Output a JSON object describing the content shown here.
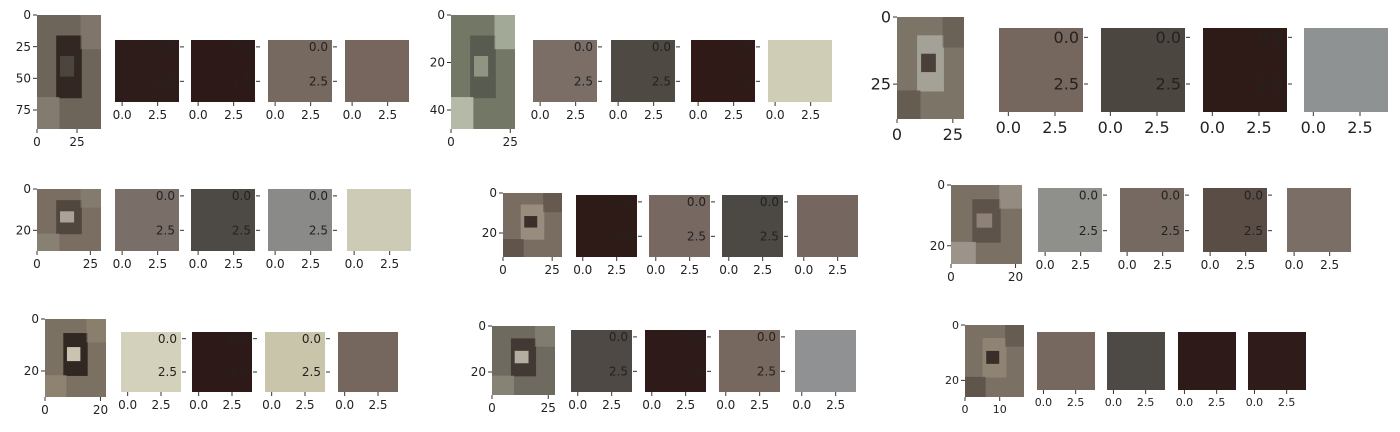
{
  "chart_data": [
    {
      "type": "image_with_color_swatches",
      "crop": {
        "xticks": [
          "0",
          "25"
        ],
        "yticks": [
          "0",
          "25",
          "50",
          "75"
        ],
        "colors": [
          "#6e655a",
          "#514b42",
          "#2b201c",
          "#8a8175"
        ]
      },
      "swatches": [
        {
          "color": "#2e1c1a",
          "xticks": [
            "0.0",
            "2.5"
          ],
          "yticks": [
            "0.0",
            "2.5"
          ]
        },
        {
          "color": "#2d1917",
          "xticks": [
            "0.0",
            "2.5"
          ],
          "yticks": [
            "0.0",
            "2.5"
          ]
        },
        {
          "color": "#756960",
          "xticks": [
            "0.0",
            "2.5"
          ],
          "yticks": [
            "0.0",
            "2.5"
          ]
        },
        {
          "color": "#76665d",
          "xticks": [
            "0.0",
            "2.5"
          ],
          "yticks": []
        }
      ]
    },
    {
      "type": "image_with_color_swatches",
      "crop": {
        "xticks": [
          "0",
          "25"
        ],
        "yticks": [
          "0",
          "20",
          "40"
        ],
        "colors": [
          "#727865",
          "#9aa08c",
          "#55584c",
          "#c5c9b9"
        ]
      },
      "swatches": [
        {
          "color": "#7a6e66",
          "xticks": [
            "0.0",
            "2.5"
          ],
          "yticks": [
            "0.0",
            "2.5"
          ]
        },
        {
          "color": "#4e4a43",
          "xticks": [
            "0.0",
            "2.5"
          ],
          "yticks": [
            "0.0",
            "2.5"
          ]
        },
        {
          "color": "#2f1a18",
          "xticks": [
            "0.0",
            "2.5"
          ],
          "yticks": [
            "0.0",
            "2.5"
          ]
        },
        {
          "color": "#cfcdb6",
          "xticks": [
            "0.0",
            "2.5"
          ],
          "yticks": []
        }
      ]
    },
    {
      "type": "image_with_color_swatches",
      "crop": {
        "xticks": [
          "0",
          "25"
        ],
        "yticks": [
          "0",
          "25"
        ],
        "colors": [
          "#7d7468",
          "#3a2e2a",
          "#a9a79c",
          "#5f564c"
        ]
      },
      "swatches": [
        {
          "color": "#75665e",
          "xticks": [
            "0.0",
            "2.5"
          ],
          "yticks": [
            "0.0",
            "2.5"
          ]
        },
        {
          "color": "#4c4641",
          "xticks": [
            "0.0",
            "2.5"
          ],
          "yticks": [
            "0.0",
            "2.5"
          ]
        },
        {
          "color": "#2e1b18",
          "xticks": [
            "0.0",
            "2.5"
          ],
          "yticks": [
            "0.0",
            "2.5"
          ]
        },
        {
          "color": "#8e9292",
          "xticks": [
            "0.0",
            "2.5"
          ],
          "yticks": []
        }
      ]
    },
    {
      "type": "image_with_color_swatches",
      "crop": {
        "xticks": [
          "0",
          "25"
        ],
        "yticks": [
          "0",
          "20"
        ],
        "colors": [
          "#7a6e62",
          "#b8b4a8",
          "#4b423c",
          "#8b8478"
        ]
      },
      "swatches": [
        {
          "color": "#7a6e68",
          "xticks": [
            "0.0",
            "2.5"
          ],
          "yticks": [
            "0.0",
            "2.5"
          ]
        },
        {
          "color": "#4d4944",
          "xticks": [
            "0.0",
            "2.5"
          ],
          "yticks": [
            "0.0",
            "2.5"
          ]
        },
        {
          "color": "#8a8a88",
          "xticks": [
            "0.0",
            "2.5"
          ],
          "yticks": [
            "0.0",
            "2.5"
          ]
        },
        {
          "color": "#cdcbb6",
          "xticks": [
            "0.0",
            "2.5"
          ],
          "yticks": []
        }
      ]
    },
    {
      "type": "image_with_color_swatches",
      "crop": {
        "xticks": [
          "0",
          "25"
        ],
        "yticks": [
          "0",
          "20"
        ],
        "colors": [
          "#786d60",
          "#2b1f1c",
          "#9a8f82",
          "#5a4e46"
        ]
      },
      "swatches": [
        {
          "color": "#2e1a17",
          "xticks": [
            "0.0",
            "2.5"
          ],
          "yticks": [
            "0.0",
            "2.5"
          ]
        },
        {
          "color": "#776862",
          "xticks": [
            "0.0",
            "2.5"
          ],
          "yticks": [
            "0.0",
            "2.5"
          ]
        },
        {
          "color": "#4c4843",
          "xticks": [
            "0.0",
            "2.5"
          ],
          "yticks": [
            "0.0",
            "2.5"
          ]
        },
        {
          "color": "#75675f",
          "xticks": [
            "0.0",
            "2.5"
          ],
          "yticks": []
        }
      ]
    },
    {
      "type": "image_with_color_swatches",
      "crop": {
        "xticks": [
          "0",
          "20"
        ],
        "yticks": [
          "0",
          "20"
        ],
        "colors": [
          "#7a7064",
          "#968b80",
          "#5b5047",
          "#a59e94"
        ]
      },
      "swatches": [
        {
          "color": "#8f8f8c",
          "xticks": [
            "0.0",
            "2.5"
          ],
          "yticks": [
            "0.0",
            "2.5"
          ]
        },
        {
          "color": "#766961",
          "xticks": [
            "0.0",
            "2.5"
          ],
          "yticks": [
            "0.0",
            "2.5"
          ]
        },
        {
          "color": "#5a4d46",
          "xticks": [
            "0.0",
            "2.5"
          ],
          "yticks": [
            "0.0",
            "2.5"
          ]
        },
        {
          "color": "#7b6e66",
          "xticks": [
            "0.0",
            "2.5"
          ],
          "yticks": []
        }
      ]
    },
    {
      "type": "image_with_color_swatches",
      "crop": {
        "xticks": [
          "0",
          "20"
        ],
        "yticks": [
          "0",
          "20"
        ],
        "colors": [
          "#7b7163",
          "#e3dfca",
          "#2a201c",
          "#938873"
        ]
      },
      "swatches": [
        {
          "color": "#d3d0bc",
          "xticks": [
            "0.0",
            "2.5"
          ],
          "yticks": [
            "0.0",
            "2.5"
          ]
        },
        {
          "color": "#2d1a18",
          "xticks": [
            "0.0",
            "2.5"
          ],
          "yticks": [
            "0.0",
            "2.5"
          ]
        },
        {
          "color": "#c9c5aa",
          "xticks": [
            "0.0",
            "2.5"
          ],
          "yticks": [
            "0.0",
            "2.5"
          ]
        },
        {
          "color": "#75665e",
          "xticks": [
            "0.0",
            "2.5"
          ],
          "yticks": []
        }
      ]
    },
    {
      "type": "image_with_color_swatches",
      "crop": {
        "xticks": [
          "0",
          "25"
        ],
        "yticks": [
          "0",
          "20"
        ],
        "colors": [
          "#6e6a60",
          "#c7c3b4",
          "#3d3430",
          "#8c887c"
        ]
      },
      "swatches": [
        {
          "color": "#4e4944",
          "xticks": [
            "0.0",
            "2.5"
          ],
          "yticks": [
            "0.0",
            "2.5"
          ]
        },
        {
          "color": "#2e1a18",
          "xticks": [
            "0.0",
            "2.5"
          ],
          "yticks": [
            "0.0",
            "2.5"
          ]
        },
        {
          "color": "#76675f",
          "xticks": [
            "0.0",
            "2.5"
          ],
          "yticks": [
            "0.0",
            "2.5"
          ]
        },
        {
          "color": "#8f9192",
          "xticks": [
            "0.0",
            "2.5"
          ],
          "yticks": []
        }
      ]
    },
    {
      "type": "image_with_color_swatches",
      "crop": {
        "xticks": [
          "0",
          "10"
        ],
        "yticks": [
          "0",
          "20"
        ],
        "colors": [
          "#7b7064",
          "#2c201b",
          "#918676",
          "#5a4f45"
        ]
      },
      "swatches": [
        {
          "color": "#76675f",
          "xticks": [
            "0.0",
            "2.5"
          ],
          "yticks": []
        },
        {
          "color": "#4d4944",
          "xticks": [
            "0.0",
            "2.5"
          ],
          "yticks": []
        },
        {
          "color": "#2e1a18",
          "xticks": [
            "0.0",
            "2.5"
          ],
          "yticks": []
        },
        {
          "color": "#2f1c1a",
          "xticks": [
            "0.0",
            "2.5"
          ],
          "yticks": []
        }
      ]
    }
  ]
}
